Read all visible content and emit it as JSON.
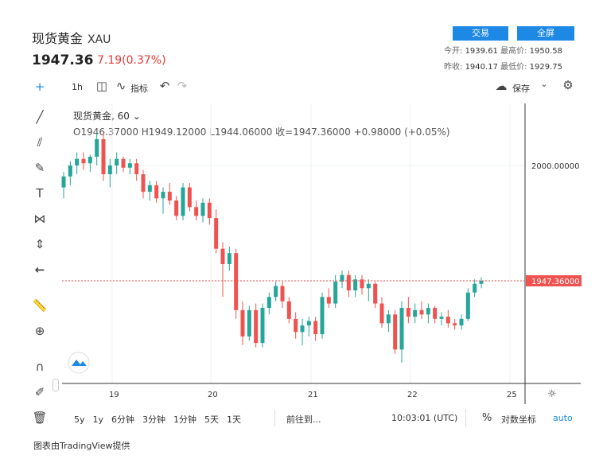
{
  "header": {
    "title": "现货黄金",
    "symbol": "XAU",
    "price": "1947.36",
    "change": "7.19(0.37%)",
    "trade_label": "交易",
    "fullscreen_label": "全屏",
    "open_label": "今开:",
    "open": "1939.61",
    "high_label": "最高价:",
    "high": "1950.58",
    "prev_label": "昨收:",
    "prev": "1940.17",
    "low_label": "最低价:",
    "low": "1929.75"
  },
  "toolbar": {
    "interval": "1h",
    "indicators": "指标",
    "save": "保存"
  },
  "legend": {
    "name": "现货黄金, 60",
    "ohlc": "O1946.37000  H1949.12000  L1944.06000  收=1947.36000  +0.98000 (+0.05%)"
  },
  "axis": {
    "price_tick": "2000.00000",
    "last_price_tag": "1947.36000",
    "x_ticks": [
      "19",
      "20",
      "21",
      "22",
      "25"
    ]
  },
  "bottom": {
    "ranges": [
      "5y",
      "1y",
      "6分钟",
      "3分钟",
      "1分钟",
      "5天",
      "1天"
    ],
    "goto": "前往到...",
    "time": "10:03:01 (UTC)",
    "percent": "%",
    "log": "对数坐标",
    "auto": "auto"
  },
  "footer": "图表由TradingView提供",
  "colors": {
    "up": "#26a69a",
    "down": "#ef5350",
    "accent": "#1e88e5"
  },
  "chart_data": {
    "type": "candlestick",
    "title": "现货黄金, 60",
    "x_ticks": [
      "19",
      "20",
      "21",
      "22",
      "25"
    ],
    "last_price": 1947.36,
    "ylim": [
      1900,
      2030
    ],
    "candles": [
      [
        1990,
        1997,
        1985,
        1995
      ],
      [
        1995,
        2002,
        1991,
        2000
      ],
      [
        2000,
        2006,
        1996,
        2003
      ],
      [
        2003,
        2006,
        1998,
        2001
      ],
      [
        2001,
        2005,
        1997,
        2004
      ],
      [
        2004,
        2015,
        2000,
        2012
      ],
      [
        2012,
        2015,
        1993,
        1996
      ],
      [
        1996,
        2003,
        1990,
        2000
      ],
      [
        2000,
        2006,
        1996,
        2003
      ],
      [
        2003,
        2004,
        1997,
        1999
      ],
      [
        1999,
        2003,
        1996,
        2001
      ],
      [
        2001,
        2003,
        1993,
        1996
      ],
      [
        1996,
        1998,
        1985,
        1988
      ],
      [
        1988,
        1993,
        1984,
        1991
      ],
      [
        1991,
        1993,
        1983,
        1985
      ],
      [
        1985,
        1990,
        1978,
        1988
      ],
      [
        1988,
        1992,
        1982,
        1984
      ],
      [
        1984,
        1986,
        1975,
        1977
      ],
      [
        1977,
        1992,
        1975,
        1990
      ],
      [
        1990,
        1992,
        1979,
        1981
      ],
      [
        1981,
        1984,
        1975,
        1977
      ],
      [
        1977,
        1985,
        1974,
        1983
      ],
      [
        1983,
        1985,
        1973,
        1976
      ],
      [
        1976,
        1980,
        1960,
        1962
      ],
      [
        1962,
        1965,
        1940,
        1955
      ],
      [
        1955,
        1963,
        1952,
        1960
      ],
      [
        1960,
        1962,
        1930,
        1934
      ],
      [
        1934,
        1938,
        1918,
        1922
      ],
      [
        1922,
        1936,
        1920,
        1934
      ],
      [
        1934,
        1937,
        1917,
        1919
      ],
      [
        1919,
        1937,
        1917,
        1935
      ],
      [
        1935,
        1942,
        1932,
        1940
      ],
      [
        1940,
        1947,
        1938,
        1945
      ],
      [
        1945,
        1947,
        1935,
        1938
      ],
      [
        1938,
        1940,
        1928,
        1930
      ],
      [
        1930,
        1933,
        1921,
        1924
      ],
      [
        1924,
        1930,
        1918,
        1927
      ],
      [
        1927,
        1931,
        1922,
        1929
      ],
      [
        1929,
        1931,
        1920,
        1923
      ],
      [
        1923,
        1942,
        1921,
        1940
      ],
      [
        1940,
        1944,
        1935,
        1937
      ],
      [
        1937,
        1950,
        1935,
        1947
      ],
      [
        1947,
        1952,
        1944,
        1950
      ],
      [
        1950,
        1952,
        1940,
        1943
      ],
      [
        1943,
        1950,
        1940,
        1948
      ],
      [
        1948,
        1950,
        1941,
        1944
      ],
      [
        1944,
        1948,
        1938,
        1946
      ],
      [
        1946,
        1947,
        1935,
        1937
      ],
      [
        1937,
        1940,
        1926,
        1928
      ],
      [
        1928,
        1934,
        1924,
        1932
      ],
      [
        1932,
        1934,
        1914,
        1916
      ],
      [
        1916,
        1938,
        1910,
        1935
      ],
      [
        1935,
        1940,
        1928,
        1931
      ],
      [
        1931,
        1937,
        1928,
        1934
      ],
      [
        1934,
        1938,
        1930,
        1932
      ],
      [
        1932,
        1937,
        1928,
        1935
      ],
      [
        1935,
        1936,
        1928,
        1930
      ],
      [
        1930,
        1933,
        1927,
        1931
      ],
      [
        1931,
        1934,
        1926,
        1928
      ],
      [
        1928,
        1930,
        1925,
        1927
      ],
      [
        1927,
        1932,
        1925,
        1930
      ],
      [
        1930,
        1944,
        1929,
        1942
      ],
      [
        1942,
        1948,
        1940,
        1946
      ],
      [
        1946,
        1949,
        1944,
        1947.36
      ]
    ]
  }
}
